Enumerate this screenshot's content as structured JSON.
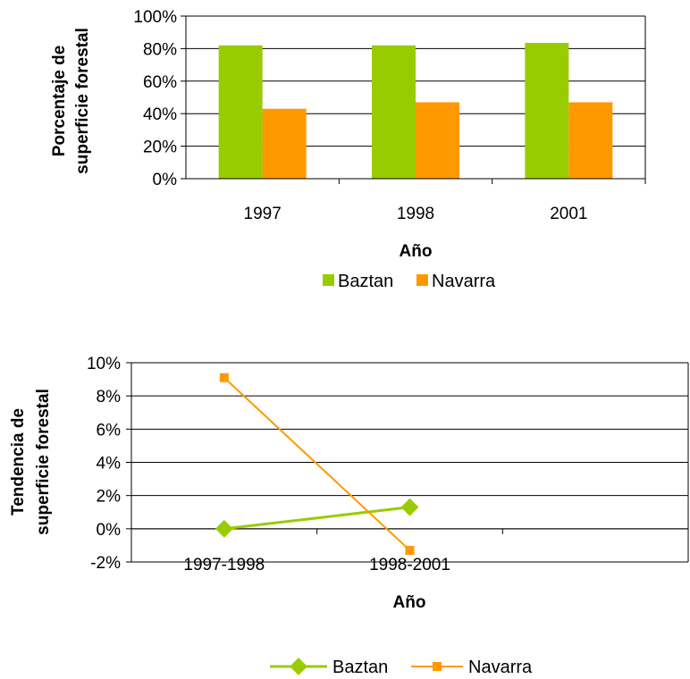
{
  "chart_data": [
    {
      "type": "bar",
      "title": "",
      "xlabel": "Año",
      "ylabel_lines": [
        "Porcentaje de",
        "superficie forestal"
      ],
      "categories": [
        "1997",
        "1998",
        "2001"
      ],
      "series": [
        {
          "name": "Baztan",
          "values": [
            82,
            82,
            83.5
          ],
          "color": "#99CC00"
        },
        {
          "name": "Navarra",
          "values": [
            43,
            47,
            47
          ],
          "color": "#FF9900"
        }
      ],
      "ylim": [
        0,
        100
      ],
      "yticks": [
        0,
        20,
        40,
        60,
        80,
        100
      ],
      "ytick_labels": [
        "0%",
        "20%",
        "40%",
        "60%",
        "80%",
        "100%"
      ],
      "grid": true,
      "legend_position": "bottom"
    },
    {
      "type": "line",
      "title": "",
      "xlabel": "Año",
      "ylabel_lines": [
        "Tendencia de",
        "superficie forestal"
      ],
      "categories": [
        "1997-1998",
        "1998-2001"
      ],
      "series": [
        {
          "name": "Baztan",
          "values": [
            0,
            1.3
          ],
          "color": "#99CC00",
          "marker": "diamond"
        },
        {
          "name": "Navarra",
          "values": [
            9.1,
            -1.3
          ],
          "color": "#FF9900",
          "marker": "square"
        }
      ],
      "ylim": [
        -2,
        10
      ],
      "yticks": [
        -2,
        0,
        2,
        4,
        6,
        8,
        10
      ],
      "ytick_labels": [
        "-2%",
        "0%",
        "2%",
        "4%",
        "6%",
        "8%",
        "10%"
      ],
      "grid": true,
      "legend_position": "bottom"
    }
  ]
}
